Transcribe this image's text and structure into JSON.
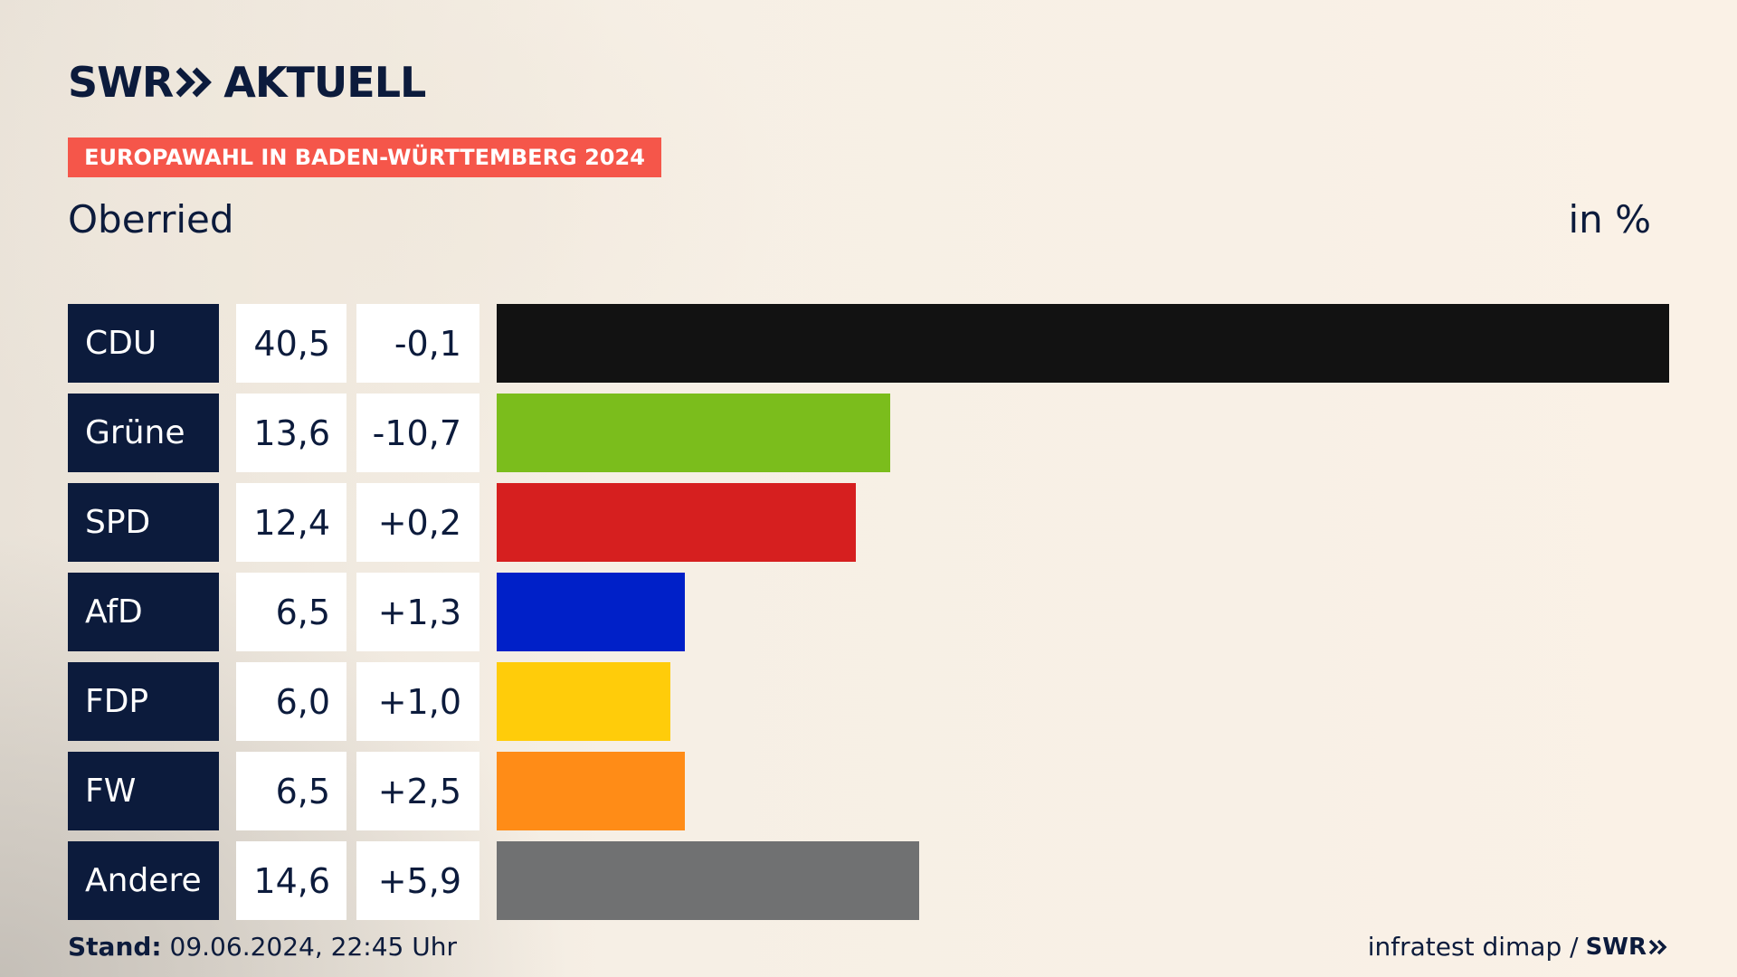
{
  "brand": {
    "logo_part1": "SWR",
    "logo_part2": "AKTUELL",
    "footer_logo": "SWR"
  },
  "banner": "EUROPAWAHL IN BADEN-WÜRTTEMBERG 2024",
  "location": "Oberried",
  "unit": "in %",
  "footer": {
    "stand_label": "Stand:",
    "stand_value": "09.06.2024, 22:45 Uhr",
    "source": "infratest dimap /"
  },
  "chart_data": {
    "type": "bar",
    "orientation": "horizontal",
    "categories": [
      "CDU",
      "Grüne",
      "SPD",
      "AfD",
      "FDP",
      "FW",
      "Andere"
    ],
    "values": [
      40.5,
      13.6,
      12.4,
      6.5,
      6.0,
      6.5,
      14.6
    ],
    "value_labels": [
      "40,5",
      "13,6",
      "12,4",
      "6,5",
      "6,0",
      "6,5",
      "14,6"
    ],
    "diff_labels": [
      "-0,1",
      "-10,7",
      "+0,2",
      "+1,3",
      "+1,0",
      "+2,5",
      "+5,9"
    ],
    "colors": [
      "#121212",
      "#7bbd1c",
      "#d61f1f",
      "#0020c8",
      "#ffcc0a",
      "#ff8c17",
      "#707172"
    ],
    "xlim": [
      0,
      40.5
    ],
    "grid": false,
    "legend": "none"
  }
}
